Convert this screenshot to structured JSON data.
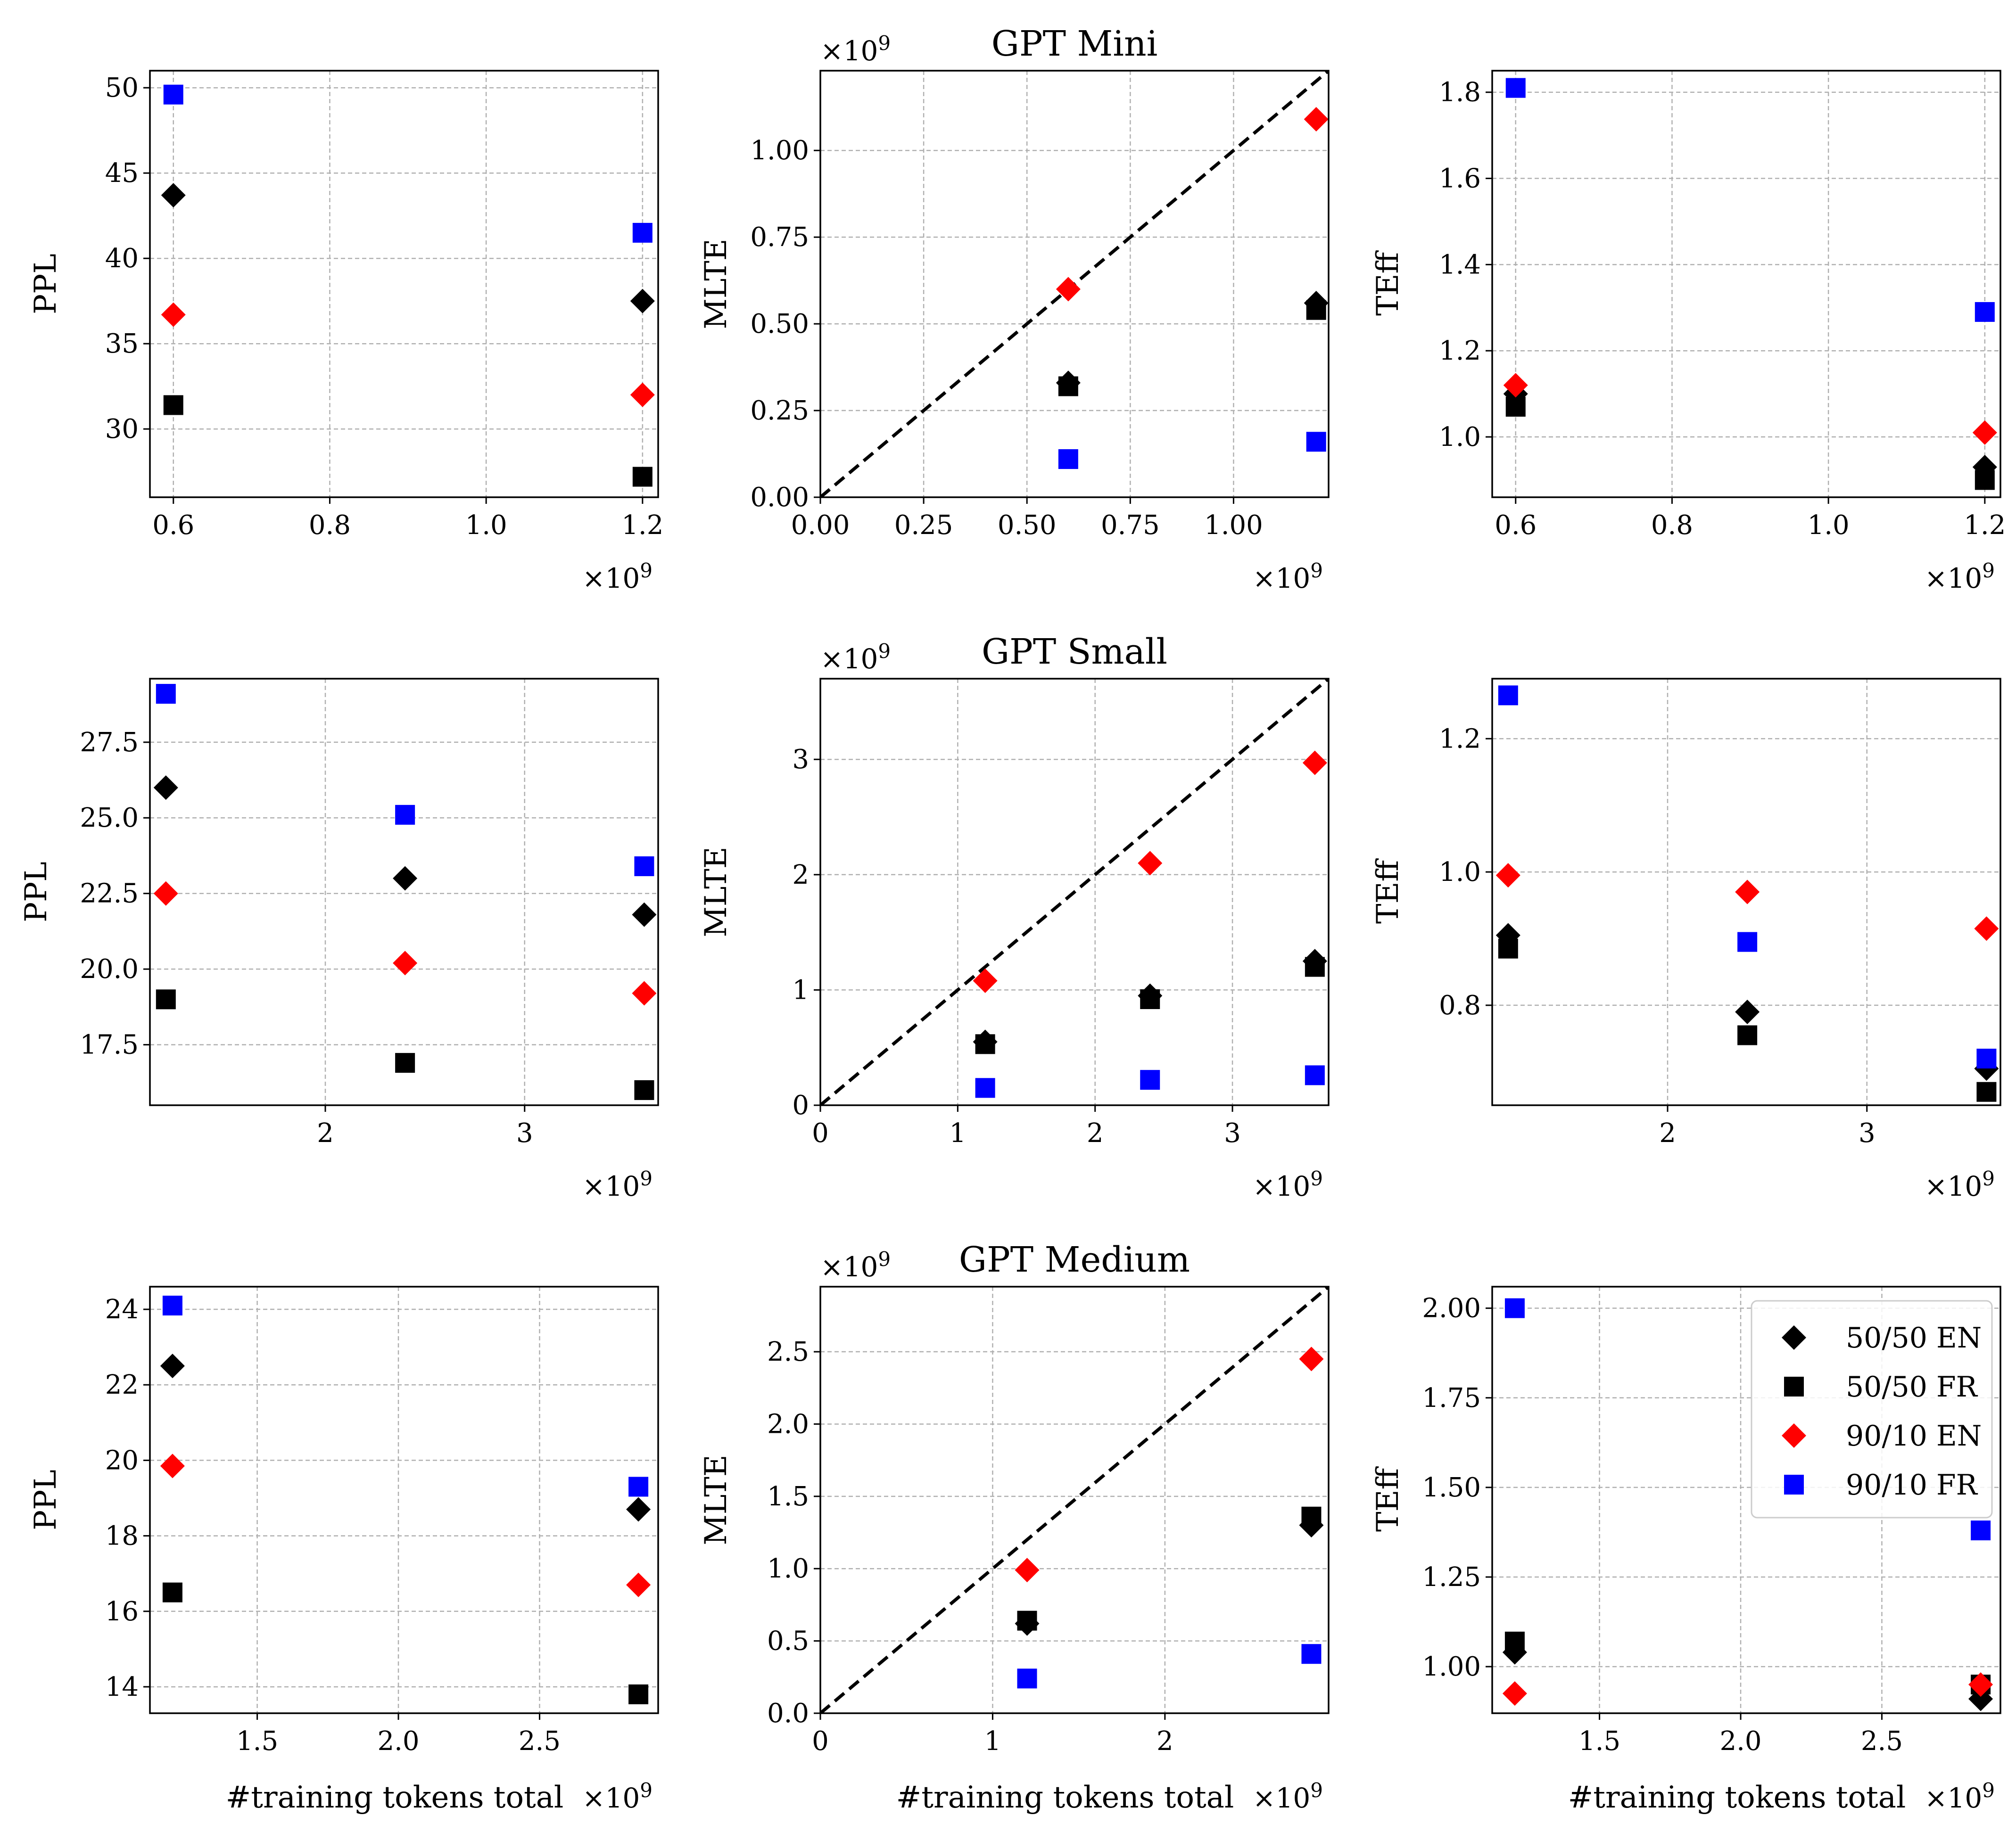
{
  "colors": {
    "en5050": "#000000",
    "fr5050": "#000000",
    "en9010": "#ff0000",
    "fr9010": "#0000ff",
    "grid": "#b0b0b0",
    "diag": "#000000"
  },
  "legend": [
    {
      "label": "50/50 EN",
      "marker": "diamond",
      "color": "#000000"
    },
    {
      "label": "50/50 FR",
      "marker": "square",
      "color": "#000000"
    },
    {
      "label": "90/10 EN",
      "marker": "diamond",
      "color": "#ff0000"
    },
    {
      "label": "90/10 FR",
      "marker": "square",
      "color": "#0000ff"
    }
  ],
  "exponent_label": "×10",
  "exponent_power": "9",
  "chart_data": [
    {
      "type": "scatter",
      "row": 0,
      "col": 0,
      "title": "",
      "xlabel": "",
      "ylabel": "PPL",
      "xlim": [
        0.57,
        1.22
      ],
      "ylim": [
        26,
        51
      ],
      "xticks": [
        0.6,
        0.8,
        1.0,
        1.2
      ],
      "xtick_labels": [
        "0.6",
        "0.8",
        "1.0",
        "1.2"
      ],
      "yticks": [
        30,
        35,
        40,
        45,
        50
      ],
      "ytick_labels": [
        "30",
        "35",
        "40",
        "45",
        "50"
      ],
      "x_offset_label": true,
      "y_offset_label": false,
      "diagonal": false,
      "series": [
        {
          "name": "50/50 EN",
          "x": [
            0.6,
            1.2
          ],
          "y": [
            43.7,
            37.5
          ]
        },
        {
          "name": "50/50 FR",
          "x": [
            0.6,
            1.2
          ],
          "y": [
            31.4,
            27.2
          ]
        },
        {
          "name": "90/10 EN",
          "x": [
            0.6,
            1.2
          ],
          "y": [
            36.7,
            32.0
          ]
        },
        {
          "name": "90/10 FR",
          "x": [
            0.6,
            1.2
          ],
          "y": [
            49.6,
            41.5
          ]
        }
      ]
    },
    {
      "type": "scatter",
      "row": 0,
      "col": 1,
      "title": "GPT Mini",
      "xlabel": "",
      "ylabel": "MLTE",
      "xlim": [
        0,
        1.23
      ],
      "ylim": [
        0,
        1.23
      ],
      "xticks": [
        0,
        0.25,
        0.5,
        0.75,
        1.0
      ],
      "xtick_labels": [
        "0.00",
        "0.25",
        "0.50",
        "0.75",
        "1.00"
      ],
      "yticks": [
        0,
        0.25,
        0.5,
        0.75,
        1.0
      ],
      "ytick_labels": [
        "0.00",
        "0.25",
        "0.50",
        "0.75",
        "1.00"
      ],
      "x_offset_label": true,
      "y_offset_label": true,
      "diagonal": true,
      "series": [
        {
          "name": "50/50 EN",
          "x": [
            0.6,
            1.2
          ],
          "y": [
            0.33,
            0.56
          ]
        },
        {
          "name": "50/50 FR",
          "x": [
            0.6,
            1.2
          ],
          "y": [
            0.32,
            0.54
          ]
        },
        {
          "name": "90/10 EN",
          "x": [
            0.6,
            1.2
          ],
          "y": [
            0.6,
            1.09
          ]
        },
        {
          "name": "90/10 FR",
          "x": [
            0.6,
            1.2
          ],
          "y": [
            0.11,
            0.16
          ]
        }
      ]
    },
    {
      "type": "scatter",
      "row": 0,
      "col": 2,
      "title": "",
      "xlabel": "",
      "ylabel": "TEff",
      "xlim": [
        0.57,
        1.22
      ],
      "ylim": [
        0.86,
        1.85
      ],
      "xticks": [
        0.6,
        0.8,
        1.0,
        1.2
      ],
      "xtick_labels": [
        "0.6",
        "0.8",
        "1.0",
        "1.2"
      ],
      "yticks": [
        1.0,
        1.2,
        1.4,
        1.6,
        1.8
      ],
      "ytick_labels": [
        "1.0",
        "1.2",
        "1.4",
        "1.6",
        "1.8"
      ],
      "x_offset_label": true,
      "y_offset_label": false,
      "diagonal": false,
      "series": [
        {
          "name": "50/50 EN",
          "x": [
            0.6,
            1.2
          ],
          "y": [
            1.1,
            0.93
          ]
        },
        {
          "name": "50/50 FR",
          "x": [
            0.6,
            1.2
          ],
          "y": [
            1.07,
            0.9
          ]
        },
        {
          "name": "90/10 EN",
          "x": [
            0.6,
            1.2
          ],
          "y": [
            1.12,
            1.01
          ]
        },
        {
          "name": "90/10 FR",
          "x": [
            0.6,
            1.2
          ],
          "y": [
            1.81,
            1.29
          ]
        }
      ]
    },
    {
      "type": "scatter",
      "row": 1,
      "col": 0,
      "title": "",
      "xlabel": "",
      "ylabel": "PPL",
      "xlim": [
        1.12,
        3.67
      ],
      "ylim": [
        15.5,
        29.6
      ],
      "xticks": [
        2,
        3
      ],
      "xtick_labels": [
        "2",
        "3"
      ],
      "yticks": [
        17.5,
        20.0,
        22.5,
        25.0,
        27.5
      ],
      "ytick_labels": [
        "17.5",
        "20.0",
        "22.5",
        "25.0",
        "27.5"
      ],
      "x_offset_label": true,
      "y_offset_label": false,
      "diagonal": false,
      "series": [
        {
          "name": "50/50 EN",
          "x": [
            1.2,
            2.4,
            3.6
          ],
          "y": [
            26.0,
            23.0,
            21.8
          ]
        },
        {
          "name": "50/50 FR",
          "x": [
            1.2,
            2.4,
            3.6
          ],
          "y": [
            19.0,
            16.9,
            16.0
          ]
        },
        {
          "name": "90/10 EN",
          "x": [
            1.2,
            2.4,
            3.6
          ],
          "y": [
            22.5,
            20.2,
            19.2
          ]
        },
        {
          "name": "90/10 FR",
          "x": [
            1.2,
            2.4,
            3.6
          ],
          "y": [
            29.1,
            25.1,
            23.4
          ]
        }
      ]
    },
    {
      "type": "scatter",
      "row": 1,
      "col": 1,
      "title": "GPT Small",
      "xlabel": "",
      "ylabel": "MLTE",
      "xlim": [
        0,
        3.7
      ],
      "ylim": [
        0,
        3.7
      ],
      "xticks": [
        0,
        1,
        2,
        3
      ],
      "xtick_labels": [
        "0",
        "1",
        "2",
        "3"
      ],
      "yticks": [
        0,
        1,
        2,
        3
      ],
      "ytick_labels": [
        "0",
        "1",
        "2",
        "3"
      ],
      "x_offset_label": true,
      "y_offset_label": true,
      "diagonal": true,
      "series": [
        {
          "name": "50/50 EN",
          "x": [
            1.2,
            2.4,
            3.6
          ],
          "y": [
            0.55,
            0.95,
            1.25
          ]
        },
        {
          "name": "50/50 FR",
          "x": [
            1.2,
            2.4,
            3.6
          ],
          "y": [
            0.53,
            0.92,
            1.2
          ]
        },
        {
          "name": "90/10 EN",
          "x": [
            1.2,
            2.4,
            3.6
          ],
          "y": [
            1.08,
            2.1,
            2.97
          ]
        },
        {
          "name": "90/10 FR",
          "x": [
            1.2,
            2.4,
            3.6
          ],
          "y": [
            0.15,
            0.22,
            0.26
          ]
        }
      ]
    },
    {
      "type": "scatter",
      "row": 1,
      "col": 2,
      "title": "",
      "xlabel": "",
      "ylabel": "TEff",
      "xlim": [
        1.12,
        3.67
      ],
      "ylim": [
        0.65,
        1.29
      ],
      "xticks": [
        2,
        3
      ],
      "xtick_labels": [
        "2",
        "3"
      ],
      "yticks": [
        0.8,
        1.0,
        1.2
      ],
      "ytick_labels": [
        "0.8",
        "1.0",
        "1.2"
      ],
      "x_offset_label": true,
      "y_offset_label": false,
      "diagonal": false,
      "series": [
        {
          "name": "50/50 EN",
          "x": [
            1.2,
            2.4,
            3.6
          ],
          "y": [
            0.905,
            0.79,
            0.705
          ]
        },
        {
          "name": "50/50 FR",
          "x": [
            1.2,
            2.4,
            3.6
          ],
          "y": [
            0.885,
            0.755,
            0.67
          ]
        },
        {
          "name": "90/10 EN",
          "x": [
            1.2,
            2.4,
            3.6
          ],
          "y": [
            0.995,
            0.97,
            0.915
          ]
        },
        {
          "name": "90/10 FR",
          "x": [
            1.2,
            2.4,
            3.6
          ],
          "y": [
            1.265,
            0.895,
            0.72
          ]
        }
      ]
    },
    {
      "type": "scatter",
      "row": 2,
      "col": 0,
      "title": "",
      "xlabel": "#training tokens total",
      "ylabel": "PPL",
      "xlim": [
        1.12,
        2.92
      ],
      "ylim": [
        13.3,
        24.6
      ],
      "xticks": [
        1.5,
        2.0,
        2.5
      ],
      "xtick_labels": [
        "1.5",
        "2.0",
        "2.5"
      ],
      "yticks": [
        14,
        16,
        18,
        20,
        22,
        24
      ],
      "ytick_labels": [
        "14",
        "16",
        "18",
        "20",
        "22",
        "24"
      ],
      "x_offset_label": true,
      "y_offset_label": false,
      "diagonal": false,
      "series": [
        {
          "name": "50/50 EN",
          "x": [
            1.2,
            2.85
          ],
          "y": [
            22.5,
            18.7
          ]
        },
        {
          "name": "50/50 FR",
          "x": [
            1.2,
            2.85
          ],
          "y": [
            16.5,
            13.8
          ]
        },
        {
          "name": "90/10 EN",
          "x": [
            1.2,
            2.85
          ],
          "y": [
            19.85,
            16.7
          ]
        },
        {
          "name": "90/10 FR",
          "x": [
            1.2,
            2.85
          ],
          "y": [
            24.1,
            19.3
          ]
        }
      ]
    },
    {
      "type": "scatter",
      "row": 2,
      "col": 1,
      "title": "GPT Medium",
      "xlabel": "#training tokens total",
      "ylabel": "MLTE",
      "xlim": [
        0,
        2.95
      ],
      "ylim": [
        0,
        2.95
      ],
      "xticks": [
        0,
        1,
        2
      ],
      "xtick_labels": [
        "0",
        "1",
        "2"
      ],
      "yticks": [
        0,
        0.5,
        1.0,
        1.5,
        2.0,
        2.5
      ],
      "ytick_labels": [
        "0.0",
        "0.5",
        "1.0",
        "1.5",
        "2.0",
        "2.5"
      ],
      "x_offset_label": true,
      "y_offset_label": true,
      "diagonal": true,
      "series": [
        {
          "name": "50/50 EN",
          "x": [
            1.2,
            2.85
          ],
          "y": [
            0.62,
            1.3
          ]
        },
        {
          "name": "50/50 FR",
          "x": [
            1.2,
            2.85
          ],
          "y": [
            0.64,
            1.36
          ]
        },
        {
          "name": "90/10 EN",
          "x": [
            1.2,
            2.85
          ],
          "y": [
            0.99,
            2.45
          ]
        },
        {
          "name": "90/10 FR",
          "x": [
            1.2,
            2.85
          ],
          "y": [
            0.24,
            0.41
          ]
        }
      ]
    },
    {
      "type": "scatter",
      "row": 2,
      "col": 2,
      "title": "",
      "xlabel": "#training tokens total",
      "ylabel": "TEff",
      "xlim": [
        1.12,
        2.92
      ],
      "ylim": [
        0.87,
        2.06
      ],
      "xticks": [
        1.5,
        2.0,
        2.5
      ],
      "xtick_labels": [
        "1.5",
        "2.0",
        "2.5"
      ],
      "yticks": [
        1.0,
        1.25,
        1.5,
        1.75,
        2.0
      ],
      "ytick_labels": [
        "1.00",
        "1.25",
        "1.50",
        "1.75",
        "2.00"
      ],
      "x_offset_label": true,
      "y_offset_label": false,
      "diagonal": false,
      "series": [
        {
          "name": "50/50 EN",
          "x": [
            1.2,
            2.85
          ],
          "y": [
            1.04,
            0.91
          ]
        },
        {
          "name": "50/50 FR",
          "x": [
            1.2,
            2.85
          ],
          "y": [
            1.07,
            0.95
          ]
        },
        {
          "name": "90/10 EN",
          "x": [
            1.2,
            2.85
          ],
          "y": [
            0.925,
            0.95
          ]
        },
        {
          "name": "90/10 FR",
          "x": [
            1.2,
            2.85
          ],
          "y": [
            2.0,
            1.38
          ]
        }
      ],
      "show_legend": true,
      "legend_position": "top-right"
    }
  ]
}
